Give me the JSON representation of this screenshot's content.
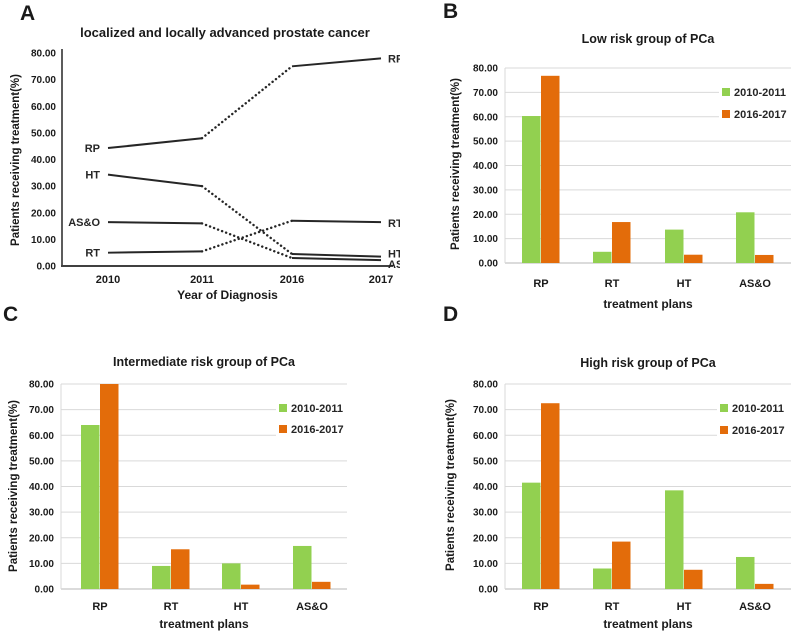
{
  "panel_letters": {
    "A": "A",
    "B": "B",
    "C": "C",
    "D": "D"
  },
  "legend": {
    "entries": [
      "2010-2011",
      "2016-2017"
    ]
  },
  "colors": {
    "green_2010_2011": "#92d050",
    "orange_2016_2017": "#e36c0a",
    "line": "#262626",
    "gridline": "#d9d9d9"
  },
  "chart_data": [
    {
      "panel": "A",
      "type": "line",
      "title": "localized and locally advanced prostate cancer",
      "xlabel": "Year of Diagnosis",
      "ylabel": "Patients receiving treatment(%)",
      "x": [
        "2010",
        "2011",
        "2016",
        "2017"
      ],
      "ylim": [
        0,
        80
      ],
      "ytick_step": 10,
      "ytick_format_decimals": 2,
      "grid": false,
      "line_color": "#262626",
      "series": [
        {
          "name": "RP",
          "values": [
            44.3,
            48.0,
            75.0,
            78.0
          ],
          "segment_styles": [
            "solid",
            "dotted",
            "solid"
          ]
        },
        {
          "name": "HT",
          "values": [
            34.3,
            30.0,
            4.5,
            3.5
          ],
          "segment_styles": [
            "solid",
            "dotted",
            "solid"
          ]
        },
        {
          "name": "AS&O",
          "values": [
            16.5,
            16.0,
            3.0,
            2.2
          ],
          "segment_styles": [
            "solid",
            "dotted",
            "solid"
          ]
        },
        {
          "name": "RT",
          "values": [
            5.0,
            5.5,
            17.0,
            16.5
          ],
          "segment_styles": [
            "solid",
            "dotted",
            "solid"
          ]
        }
      ],
      "series_labels_at_both_ends": true
    },
    {
      "panel": "B",
      "type": "bar",
      "title": "Low risk group of PCa",
      "xlabel": "treatment plans",
      "ylabel": "Patients receiving treatment(%)",
      "categories": [
        "RP",
        "RT",
        "HT",
        "AS&O"
      ],
      "ylim": [
        0,
        80
      ],
      "ytick_step": 10,
      "ytick_format_decimals": 2,
      "grid": true,
      "legend_position": "top-right",
      "series": [
        {
          "name": "2010-2011",
          "color": "#92d050",
          "values": [
            60.3,
            4.6,
            13.7,
            20.8
          ]
        },
        {
          "name": "2016-2017",
          "color": "#e36c0a",
          "values": [
            76.8,
            16.8,
            3.4,
            3.3
          ]
        }
      ]
    },
    {
      "panel": "C",
      "type": "bar",
      "title": "Intermediate risk group of  PCa",
      "xlabel": "treatment plans",
      "ylabel": "Patients receiving treatment(%)",
      "categories": [
        "RP",
        "RT",
        "HT",
        "AS&O"
      ],
      "ylim": [
        0,
        80
      ],
      "ytick_step": 10,
      "ytick_format_decimals": 2,
      "grid": true,
      "legend_position": "top-right",
      "series": [
        {
          "name": "2010-2011",
          "color": "#92d050",
          "values": [
            64.0,
            9.0,
            10.0,
            16.8
          ]
        },
        {
          "name": "2016-2017",
          "color": "#e36c0a",
          "values": [
            80.0,
            15.5,
            1.7,
            2.8
          ]
        }
      ]
    },
    {
      "panel": "D",
      "type": "bar",
      "title": "High risk group of PCa",
      "xlabel": "treatment plans",
      "ylabel": "Patients receiving treatment(%)",
      "categories": [
        "RP",
        "RT",
        "HT",
        "AS&O"
      ],
      "ylim": [
        0,
        80
      ],
      "ytick_step": 10,
      "ytick_format_decimals": 2,
      "grid": true,
      "legend_position": "top-right",
      "series": [
        {
          "name": "2010-2011",
          "color": "#92d050",
          "values": [
            41.5,
            8.0,
            38.5,
            12.5
          ]
        },
        {
          "name": "2016-2017",
          "color": "#e36c0a",
          "values": [
            72.5,
            18.5,
            7.5,
            2.0
          ]
        }
      ]
    }
  ]
}
